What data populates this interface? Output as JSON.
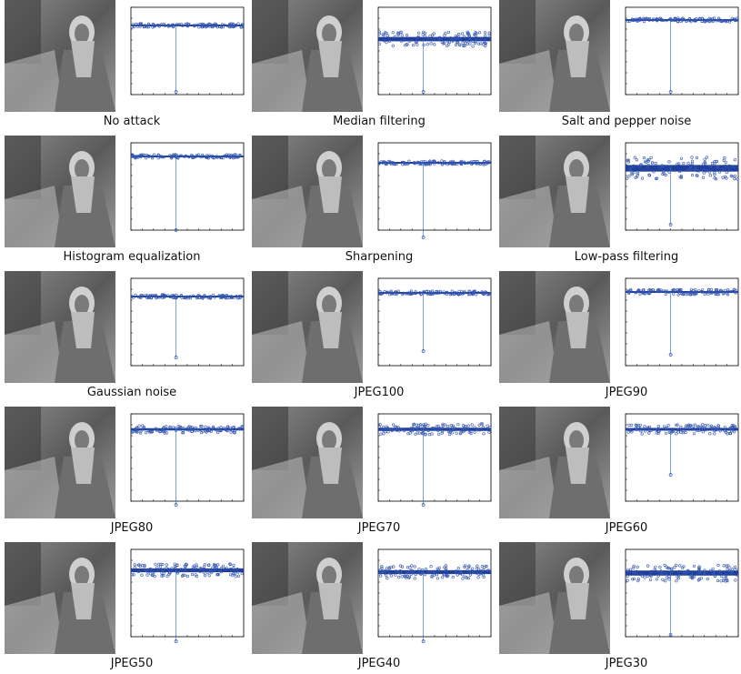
{
  "panels": [
    {
      "caption": "No attack"
    },
    {
      "caption": "Median filtering"
    },
    {
      "caption": "Salt and pepper noise"
    },
    {
      "caption": "Histogram equalization"
    },
    {
      "caption": "Sharpening"
    },
    {
      "caption": "Low-pass filtering"
    },
    {
      "caption": "Gaussian noise"
    },
    {
      "caption": "JPEG100"
    },
    {
      "caption": "JPEG90"
    },
    {
      "caption": "JPEG80"
    },
    {
      "caption": "JPEG70"
    },
    {
      "caption": "JPEG60"
    },
    {
      "caption": "JPEG50"
    },
    {
      "caption": "JPEG40"
    },
    {
      "caption": "JPEG30"
    }
  ]
}
